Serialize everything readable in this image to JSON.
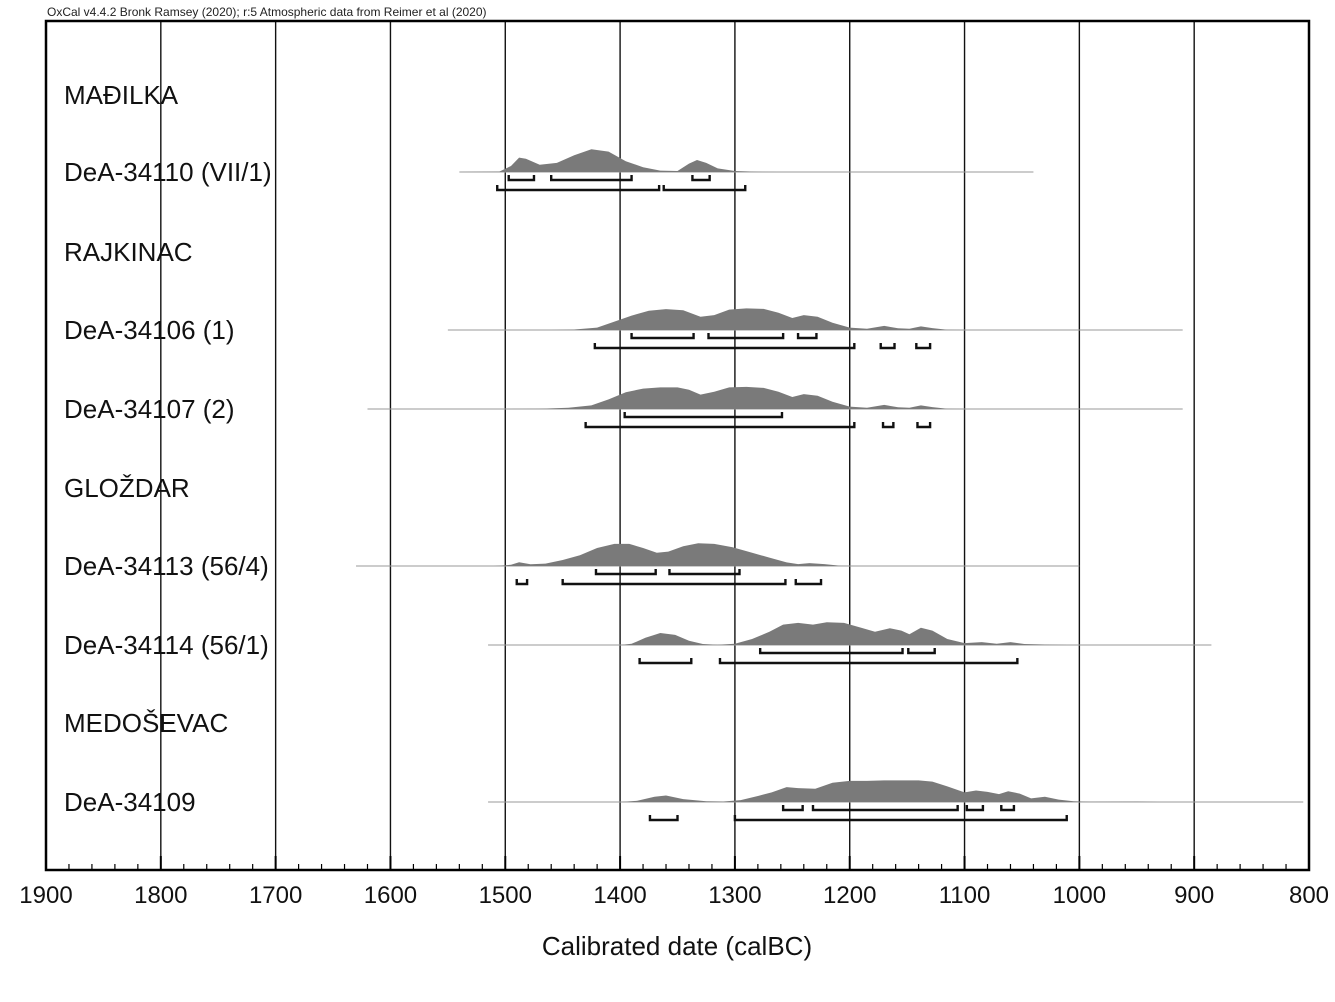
{
  "header_text": "OxCal v4.4.2 Bronk Ramsey (2020); r:5 Atmospheric data from Reimer et al (2020)",
  "colors": {
    "density_fill": "#7a7a7a",
    "gridline": "#111111",
    "baseline": "#9a9a9a",
    "frame": "#000000"
  },
  "chart_data": {
    "type": "area",
    "xlabel": "Calibrated date (calBC)",
    "xlim": [
      1900,
      800
    ],
    "x_ticks": [
      1900,
      1800,
      1700,
      1600,
      1500,
      1400,
      1300,
      1200,
      1100,
      1000,
      900,
      800
    ],
    "grid": true,
    "rows": [
      {
        "kind": "group",
        "label": "MAĐILKA"
      },
      {
        "kind": "sample",
        "label": "DeA-34110 (VII/1)",
        "range": [
          1540,
          1040
        ],
        "density": [
          [
            1540,
            0
          ],
          [
            1505,
            0.02
          ],
          [
            1495,
            0.25
          ],
          [
            1488,
            0.6
          ],
          [
            1482,
            0.55
          ],
          [
            1470,
            0.3
          ],
          [
            1455,
            0.38
          ],
          [
            1440,
            0.7
          ],
          [
            1425,
            0.95
          ],
          [
            1410,
            0.85
          ],
          [
            1395,
            0.45
          ],
          [
            1380,
            0.2
          ],
          [
            1365,
            0.06
          ],
          [
            1350,
            0.04
          ],
          [
            1340,
            0.35
          ],
          [
            1333,
            0.5
          ],
          [
            1325,
            0.38
          ],
          [
            1315,
            0.15
          ],
          [
            1300,
            0.04
          ],
          [
            1280,
            0.01
          ],
          [
            1260,
            0
          ]
        ],
        "ranges_68": [
          [
            1497,
            1475
          ],
          [
            1460,
            1390
          ],
          [
            1337,
            1322
          ]
        ],
        "ranges_95": [
          [
            1507,
            1366
          ],
          [
            1362,
            1291
          ]
        ]
      },
      {
        "kind": "group",
        "label": "RAJKINAC"
      },
      {
        "kind": "sample",
        "label": "DeA-34106 (1)",
        "range": [
          1550,
          910
        ],
        "density": [
          [
            1460,
            0
          ],
          [
            1440,
            0.02
          ],
          [
            1420,
            0.1
          ],
          [
            1405,
            0.35
          ],
          [
            1390,
            0.6
          ],
          [
            1375,
            0.8
          ],
          [
            1360,
            0.87
          ],
          [
            1345,
            0.82
          ],
          [
            1330,
            0.55
          ],
          [
            1318,
            0.62
          ],
          [
            1305,
            0.85
          ],
          [
            1290,
            0.9
          ],
          [
            1275,
            0.88
          ],
          [
            1262,
            0.72
          ],
          [
            1250,
            0.5
          ],
          [
            1240,
            0.62
          ],
          [
            1228,
            0.55
          ],
          [
            1215,
            0.3
          ],
          [
            1200,
            0.1
          ],
          [
            1185,
            0.05
          ],
          [
            1170,
            0.17
          ],
          [
            1158,
            0.07
          ],
          [
            1148,
            0.05
          ],
          [
            1138,
            0.15
          ],
          [
            1128,
            0.08
          ],
          [
            1115,
            0.01
          ],
          [
            1100,
            0
          ]
        ],
        "ranges_68": [
          [
            1390,
            1336
          ],
          [
            1323,
            1258
          ],
          [
            1245,
            1229
          ]
        ],
        "ranges_95": [
          [
            1422,
            1196
          ],
          [
            1173,
            1161
          ],
          [
            1142,
            1130
          ]
        ]
      },
      {
        "kind": "sample",
        "label": "DeA-34107 (2)",
        "range": [
          1620,
          910
        ],
        "density": [
          [
            1500,
            0
          ],
          [
            1470,
            0.01
          ],
          [
            1445,
            0.05
          ],
          [
            1425,
            0.15
          ],
          [
            1410,
            0.4
          ],
          [
            1395,
            0.7
          ],
          [
            1380,
            0.85
          ],
          [
            1365,
            0.9
          ],
          [
            1350,
            0.9
          ],
          [
            1340,
            0.8
          ],
          [
            1330,
            0.6
          ],
          [
            1318,
            0.72
          ],
          [
            1305,
            0.9
          ],
          [
            1290,
            0.92
          ],
          [
            1275,
            0.88
          ],
          [
            1262,
            0.72
          ],
          [
            1250,
            0.5
          ],
          [
            1240,
            0.62
          ],
          [
            1228,
            0.55
          ],
          [
            1215,
            0.3
          ],
          [
            1200,
            0.1
          ],
          [
            1185,
            0.05
          ],
          [
            1170,
            0.17
          ],
          [
            1158,
            0.07
          ],
          [
            1148,
            0.05
          ],
          [
            1138,
            0.15
          ],
          [
            1128,
            0.08
          ],
          [
            1115,
            0.01
          ],
          [
            1100,
            0
          ]
        ],
        "ranges_68": [
          [
            1396,
            1259
          ]
        ],
        "ranges_95": [
          [
            1430,
            1196
          ],
          [
            1171,
            1162
          ],
          [
            1141,
            1130
          ]
        ]
      },
      {
        "kind": "group",
        "label": "GLOŽDAR"
      },
      {
        "kind": "sample",
        "label": "DeA-34113 (56/4)",
        "range": [
          1630,
          1000
        ],
        "density": [
          [
            1510,
            0
          ],
          [
            1495,
            0.05
          ],
          [
            1488,
            0.16
          ],
          [
            1478,
            0.07
          ],
          [
            1465,
            0.1
          ],
          [
            1450,
            0.25
          ],
          [
            1435,
            0.45
          ],
          [
            1420,
            0.75
          ],
          [
            1405,
            0.92
          ],
          [
            1392,
            0.92
          ],
          [
            1380,
            0.75
          ],
          [
            1368,
            0.55
          ],
          [
            1358,
            0.6
          ],
          [
            1345,
            0.82
          ],
          [
            1332,
            0.95
          ],
          [
            1318,
            0.92
          ],
          [
            1302,
            0.78
          ],
          [
            1285,
            0.55
          ],
          [
            1270,
            0.35
          ],
          [
            1255,
            0.15
          ],
          [
            1245,
            0.08
          ],
          [
            1235,
            0.12
          ],
          [
            1222,
            0.08
          ],
          [
            1208,
            0.01
          ],
          [
            1195,
            0
          ]
        ],
        "ranges_68": [
          [
            1421,
            1369
          ],
          [
            1357,
            1296
          ]
        ],
        "ranges_95": [
          [
            1490,
            1481
          ],
          [
            1450,
            1256
          ],
          [
            1247,
            1225
          ]
        ]
      },
      {
        "kind": "sample",
        "label": "DeA-34114 (56/1)",
        "range": [
          1515,
          885
        ],
        "density": [
          [
            1400,
            0
          ],
          [
            1390,
            0.05
          ],
          [
            1378,
            0.3
          ],
          [
            1365,
            0.5
          ],
          [
            1352,
            0.42
          ],
          [
            1340,
            0.18
          ],
          [
            1328,
            0.04
          ],
          [
            1315,
            0.01
          ],
          [
            1300,
            0.05
          ],
          [
            1285,
            0.25
          ],
          [
            1270,
            0.55
          ],
          [
            1258,
            0.85
          ],
          [
            1245,
            0.92
          ],
          [
            1232,
            0.85
          ],
          [
            1220,
            0.95
          ],
          [
            1205,
            0.92
          ],
          [
            1190,
            0.72
          ],
          [
            1178,
            0.55
          ],
          [
            1165,
            0.7
          ],
          [
            1155,
            0.6
          ],
          [
            1148,
            0.45
          ],
          [
            1138,
            0.72
          ],
          [
            1128,
            0.6
          ],
          [
            1115,
            0.25
          ],
          [
            1100,
            0.08
          ],
          [
            1085,
            0.12
          ],
          [
            1072,
            0.05
          ],
          [
            1060,
            0.12
          ],
          [
            1048,
            0.04
          ],
          [
            1030,
            0.02
          ],
          [
            1010,
            0
          ]
        ],
        "ranges_68": [
          [
            1278,
            1154
          ],
          [
            1149,
            1126
          ]
        ],
        "ranges_95": [
          [
            1383,
            1338
          ],
          [
            1313,
            1054
          ]
        ]
      },
      {
        "kind": "group",
        "label": "MEDOŠEVAC"
      },
      {
        "kind": "sample",
        "label": "DeA-34109",
        "range": [
          1515,
          805
        ],
        "density": [
          [
            1400,
            0
          ],
          [
            1385,
            0.05
          ],
          [
            1370,
            0.22
          ],
          [
            1360,
            0.27
          ],
          [
            1345,
            0.12
          ],
          [
            1325,
            0.03
          ],
          [
            1310,
            0.02
          ],
          [
            1295,
            0.08
          ],
          [
            1280,
            0.25
          ],
          [
            1268,
            0.4
          ],
          [
            1255,
            0.62
          ],
          [
            1245,
            0.58
          ],
          [
            1230,
            0.55
          ],
          [
            1215,
            0.8
          ],
          [
            1200,
            0.88
          ],
          [
            1185,
            0.88
          ],
          [
            1170,
            0.9
          ],
          [
            1155,
            0.9
          ],
          [
            1140,
            0.9
          ],
          [
            1128,
            0.85
          ],
          [
            1115,
            0.65
          ],
          [
            1100,
            0.4
          ],
          [
            1090,
            0.48
          ],
          [
            1080,
            0.42
          ],
          [
            1070,
            0.33
          ],
          [
            1062,
            0.45
          ],
          [
            1052,
            0.35
          ],
          [
            1042,
            0.15
          ],
          [
            1030,
            0.22
          ],
          [
            1018,
            0.1
          ],
          [
            1005,
            0.03
          ],
          [
            990,
            0.01
          ],
          [
            950,
            0.02
          ],
          [
            930,
            0
          ]
        ],
        "ranges_68": [
          [
            1258,
            1241
          ],
          [
            1232,
            1106
          ],
          [
            1098,
            1084
          ],
          [
            1068,
            1057
          ]
        ],
        "ranges_95": [
          [
            1374,
            1350
          ],
          [
            1300,
            1011
          ]
        ]
      }
    ]
  }
}
